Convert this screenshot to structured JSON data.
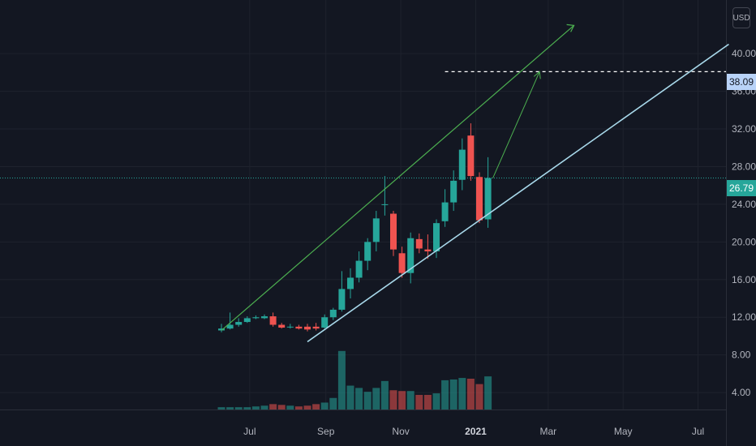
{
  "currency": "USD",
  "price_labels": {
    "target": "38.09",
    "last": "26.79"
  },
  "colors": {
    "up": "#26a69a",
    "down": "#ef5350",
    "trend": "#4caf50",
    "support": "#a8d8ea",
    "target_label": "#b9d3f8"
  },
  "chart_data": {
    "type": "candlestick",
    "title": "",
    "x_axis_ticks": [
      "Jul",
      "Sep",
      "Nov",
      "2021",
      "Mar",
      "May",
      "Jul"
    ],
    "y_axis_ticks": [
      "4.00",
      "8.00",
      "12.00",
      "16.00",
      "20.00",
      "24.00",
      "28.00",
      "32.00",
      "36.00",
      "40.00"
    ],
    "ylim": [
      2.2,
      45.7
    ],
    "interval": "weekly",
    "candles": [
      {
        "week": "2020-06-08",
        "o": 10.6,
        "h": 11.3,
        "l": 10.4,
        "c": 10.8
      },
      {
        "week": "2020-06-15",
        "o": 10.8,
        "h": 12.5,
        "l": 10.7,
        "c": 11.2
      },
      {
        "week": "2020-06-22",
        "o": 11.2,
        "h": 11.9,
        "l": 11.0,
        "c": 11.5
      },
      {
        "week": "2020-06-29",
        "o": 11.5,
        "h": 12.1,
        "l": 11.4,
        "c": 11.9
      },
      {
        "week": "2020-07-06",
        "o": 11.9,
        "h": 12.2,
        "l": 11.8,
        "c": 12.0
      },
      {
        "week": "2020-07-13",
        "o": 11.9,
        "h": 12.3,
        "l": 11.8,
        "c": 12.1
      },
      {
        "week": "2020-07-20",
        "o": 12.1,
        "h": 12.5,
        "l": 11.0,
        "c": 11.2
      },
      {
        "week": "2020-07-27",
        "o": 11.2,
        "h": 11.4,
        "l": 10.8,
        "c": 10.9
      },
      {
        "week": "2020-08-03",
        "o": 11.0,
        "h": 11.3,
        "l": 10.8,
        "c": 11.0
      },
      {
        "week": "2020-08-10",
        "o": 11.0,
        "h": 11.2,
        "l": 10.7,
        "c": 10.8
      },
      {
        "week": "2020-08-17",
        "o": 11.0,
        "h": 11.3,
        "l": 10.5,
        "c": 10.7
      },
      {
        "week": "2020-08-24",
        "o": 11.0,
        "h": 11.4,
        "l": 10.6,
        "c": 10.8
      },
      {
        "week": "2020-08-31",
        "o": 10.9,
        "h": 12.3,
        "l": 10.8,
        "c": 12.0
      },
      {
        "week": "2020-09-07",
        "o": 12.0,
        "h": 13.0,
        "l": 11.7,
        "c": 12.8
      },
      {
        "week": "2020-09-14",
        "o": 12.8,
        "h": 16.9,
        "l": 12.6,
        "c": 15.0
      },
      {
        "week": "2020-09-21",
        "o": 15.0,
        "h": 17.2,
        "l": 14.0,
        "c": 16.2
      },
      {
        "week": "2020-09-28",
        "o": 16.2,
        "h": 19.0,
        "l": 15.7,
        "c": 18.0
      },
      {
        "week": "2020-10-05",
        "o": 18.0,
        "h": 20.4,
        "l": 17.0,
        "c": 20.0
      },
      {
        "week": "2020-10-12",
        "o": 20.0,
        "h": 23.3,
        "l": 19.0,
        "c": 22.5
      },
      {
        "week": "2020-10-19",
        "o": 24.0,
        "h": 27.0,
        "l": 22.8,
        "c": 24.0
      },
      {
        "week": "2020-10-26",
        "o": 23.0,
        "h": 23.3,
        "l": 18.5,
        "c": 19.2
      },
      {
        "week": "2020-11-02",
        "o": 18.8,
        "h": 19.5,
        "l": 16.2,
        "c": 16.7
      },
      {
        "week": "2020-11-09",
        "o": 16.7,
        "h": 21.0,
        "l": 15.6,
        "c": 20.4
      },
      {
        "week": "2020-11-16",
        "o": 20.3,
        "h": 20.9,
        "l": 18.8,
        "c": 19.3
      },
      {
        "week": "2020-11-23",
        "o": 19.2,
        "h": 20.8,
        "l": 18.2,
        "c": 19.0
      },
      {
        "week": "2020-11-30",
        "o": 19.0,
        "h": 22.4,
        "l": 18.3,
        "c": 22.0
      },
      {
        "week": "2020-12-07",
        "o": 22.2,
        "h": 25.6,
        "l": 21.6,
        "c": 24.2
      },
      {
        "week": "2020-12-14",
        "o": 24.2,
        "h": 27.6,
        "l": 23.3,
        "c": 26.5
      },
      {
        "week": "2020-12-21",
        "o": 26.6,
        "h": 31.0,
        "l": 25.5,
        "c": 29.8
      },
      {
        "week": "2020-12-28",
        "o": 31.3,
        "h": 32.6,
        "l": 26.5,
        "c": 27.0
      },
      {
        "week": "2021-01-04",
        "o": 26.9,
        "h": 27.4,
        "l": 22.0,
        "c": 22.3
      },
      {
        "week": "2021-01-11",
        "o": 22.4,
        "h": 29.0,
        "l": 21.5,
        "c": 26.79
      }
    ],
    "volume_scale": [
      0,
      1
    ],
    "volume": [
      0.03,
      0.03,
      0.03,
      0.03,
      0.04,
      0.05,
      0.07,
      0.06,
      0.05,
      0.04,
      0.05,
      0.07,
      0.09,
      0.15,
      0.76,
      0.31,
      0.28,
      0.23,
      0.28,
      0.37,
      0.25,
      0.24,
      0.24,
      0.19,
      0.19,
      0.21,
      0.38,
      0.39,
      0.41,
      0.4,
      0.33,
      0.43
    ],
    "annotations": {
      "target_line": 38.09,
      "last_price_line": 26.79,
      "upper_trendline": {
        "from": {
          "week": "2020-06-08",
          "price": 10.6
        },
        "to": {
          "week": "2021-03-22",
          "price": 43.0
        },
        "arrow": true
      },
      "support_trendline": {
        "from": {
          "week": "2020-08-17",
          "price": 9.4
        },
        "to": {
          "week": "2021-07-26",
          "price": 41.0
        }
      },
      "projection_arrow": {
        "from": {
          "week": "2021-01-11",
          "price": 26.79
        },
        "to": {
          "week": "2021-02-22",
          "price": 38.09
        }
      }
    }
  }
}
